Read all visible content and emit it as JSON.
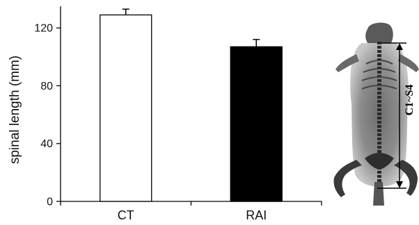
{
  "chart_data": {
    "type": "bar",
    "categories": [
      "CT",
      "RAI"
    ],
    "values": [
      129,
      107
    ],
    "errors": [
      4,
      5
    ],
    "bar_colors": [
      "#ffffff",
      "#000000"
    ],
    "ylabel": "spinal length (mm)",
    "xlabel": "",
    "ylim": [
      0,
      135
    ],
    "yticks": [
      0,
      40,
      80,
      120
    ],
    "grid": false,
    "annotation": "C1~S4"
  }
}
